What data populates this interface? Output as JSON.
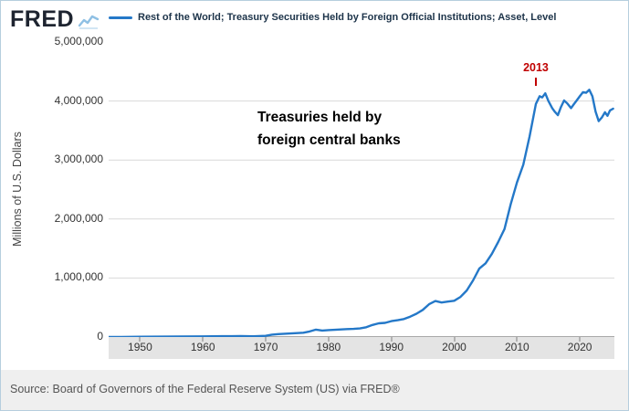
{
  "header": {
    "logo_text": "FRED"
  },
  "footer": {
    "source": "Source: Board of Governors of the Federal Reserve System (US) via FRED®"
  },
  "colors": {
    "line": "#2478c8",
    "logo_icon": "#8fc0e4",
    "annotation_red": "#c00000",
    "grid": "#d9d9d9",
    "zero_line": "#a8a8a8",
    "band_bg": "#e4e4e4"
  },
  "chart_data": {
    "type": "line",
    "title": "Rest of the World; Treasury Securities Held by Foreign Official Institutions; Asset, Level",
    "xlabel": "",
    "ylabel": "Millions of U.S. Dollars",
    "xlim": [
      1945,
      2025.5
    ],
    "ylim": [
      0,
      5000000
    ],
    "grid": "horizontal",
    "legend_position": "top",
    "gridline_values": [
      1000000,
      2000000,
      3000000,
      4000000
    ],
    "y_ticks": [
      {
        "label": "5,000,000",
        "value": 5000000
      },
      {
        "label": "4,000,000",
        "value": 4000000
      },
      {
        "label": "3,000,000",
        "value": 3000000
      },
      {
        "label": "2,000,000",
        "value": 2000000
      },
      {
        "label": "1,000,000",
        "value": 1000000
      },
      {
        "label": "0",
        "value": 0
      }
    ],
    "x_ticks": [
      {
        "label": "1950",
        "value": 1950
      },
      {
        "label": "1960",
        "value": 1960
      },
      {
        "label": "1970",
        "value": 1970
      },
      {
        "label": "1980",
        "value": 1980
      },
      {
        "label": "1990",
        "value": 1990
      },
      {
        "label": "2000",
        "value": 2000
      },
      {
        "label": "2010",
        "value": 2010
      },
      {
        "label": "2020",
        "value": 2020
      }
    ],
    "annotations": {
      "peak": {
        "label": "2013",
        "year": 2013
      },
      "note": {
        "line1": "Treasuries held by",
        "line2": "foreign central banks"
      }
    },
    "series": [
      {
        "name": "Rest of the World; Treasury Securities Held by Foreign Official Institutions; Asset, Level",
        "color": "#2478c8",
        "points": [
          [
            1945,
            1500
          ],
          [
            1947,
            2000
          ],
          [
            1950,
            4000
          ],
          [
            1953,
            5500
          ],
          [
            1956,
            8000
          ],
          [
            1960,
            11000
          ],
          [
            1963,
            14000
          ],
          [
            1966,
            15000
          ],
          [
            1968,
            13000
          ],
          [
            1970,
            20000
          ],
          [
            1971,
            40000
          ],
          [
            1972,
            50000
          ],
          [
            1973,
            55000
          ],
          [
            1974,
            60000
          ],
          [
            1975,
            66000
          ],
          [
            1976,
            72000
          ],
          [
            1977,
            95000
          ],
          [
            1978,
            125000
          ],
          [
            1979,
            110000
          ],
          [
            1980,
            118000
          ],
          [
            1981,
            122000
          ],
          [
            1982,
            128000
          ],
          [
            1983,
            134000
          ],
          [
            1984,
            138000
          ],
          [
            1985,
            145000
          ],
          [
            1986,
            165000
          ],
          [
            1987,
            205000
          ],
          [
            1988,
            232000
          ],
          [
            1989,
            240000
          ],
          [
            1990,
            270000
          ],
          [
            1991,
            285000
          ],
          [
            1992,
            305000
          ],
          [
            1993,
            345000
          ],
          [
            1994,
            395000
          ],
          [
            1995,
            460000
          ],
          [
            1996,
            555000
          ],
          [
            1997,
            610000
          ],
          [
            1998,
            585000
          ],
          [
            1999,
            600000
          ],
          [
            2000,
            615000
          ],
          [
            2001,
            680000
          ],
          [
            2002,
            790000
          ],
          [
            2003,
            960000
          ],
          [
            2004,
            1160000
          ],
          [
            2005,
            1250000
          ],
          [
            2006,
            1410000
          ],
          [
            2007,
            1610000
          ],
          [
            2008,
            1830000
          ],
          [
            2009,
            2250000
          ],
          [
            2010,
            2620000
          ],
          [
            2011,
            2920000
          ],
          [
            2012,
            3400000
          ],
          [
            2013,
            3950000
          ],
          [
            2013.6,
            4080000
          ],
          [
            2014,
            4060000
          ],
          [
            2014.5,
            4130000
          ],
          [
            2015,
            4000000
          ],
          [
            2015.6,
            3880000
          ],
          [
            2016,
            3820000
          ],
          [
            2016.5,
            3760000
          ],
          [
            2017,
            3900000
          ],
          [
            2017.5,
            4010000
          ],
          [
            2018,
            3960000
          ],
          [
            2018.6,
            3880000
          ],
          [
            2019,
            3940000
          ],
          [
            2019.5,
            4010000
          ],
          [
            2020,
            4080000
          ],
          [
            2020.5,
            4150000
          ],
          [
            2021,
            4140000
          ],
          [
            2021.5,
            4190000
          ],
          [
            2022,
            4080000
          ],
          [
            2022.5,
            3820000
          ],
          [
            2023,
            3660000
          ],
          [
            2023.5,
            3720000
          ],
          [
            2024,
            3810000
          ],
          [
            2024.4,
            3750000
          ],
          [
            2024.8,
            3840000
          ],
          [
            2025.3,
            3870000
          ]
        ]
      }
    ]
  }
}
